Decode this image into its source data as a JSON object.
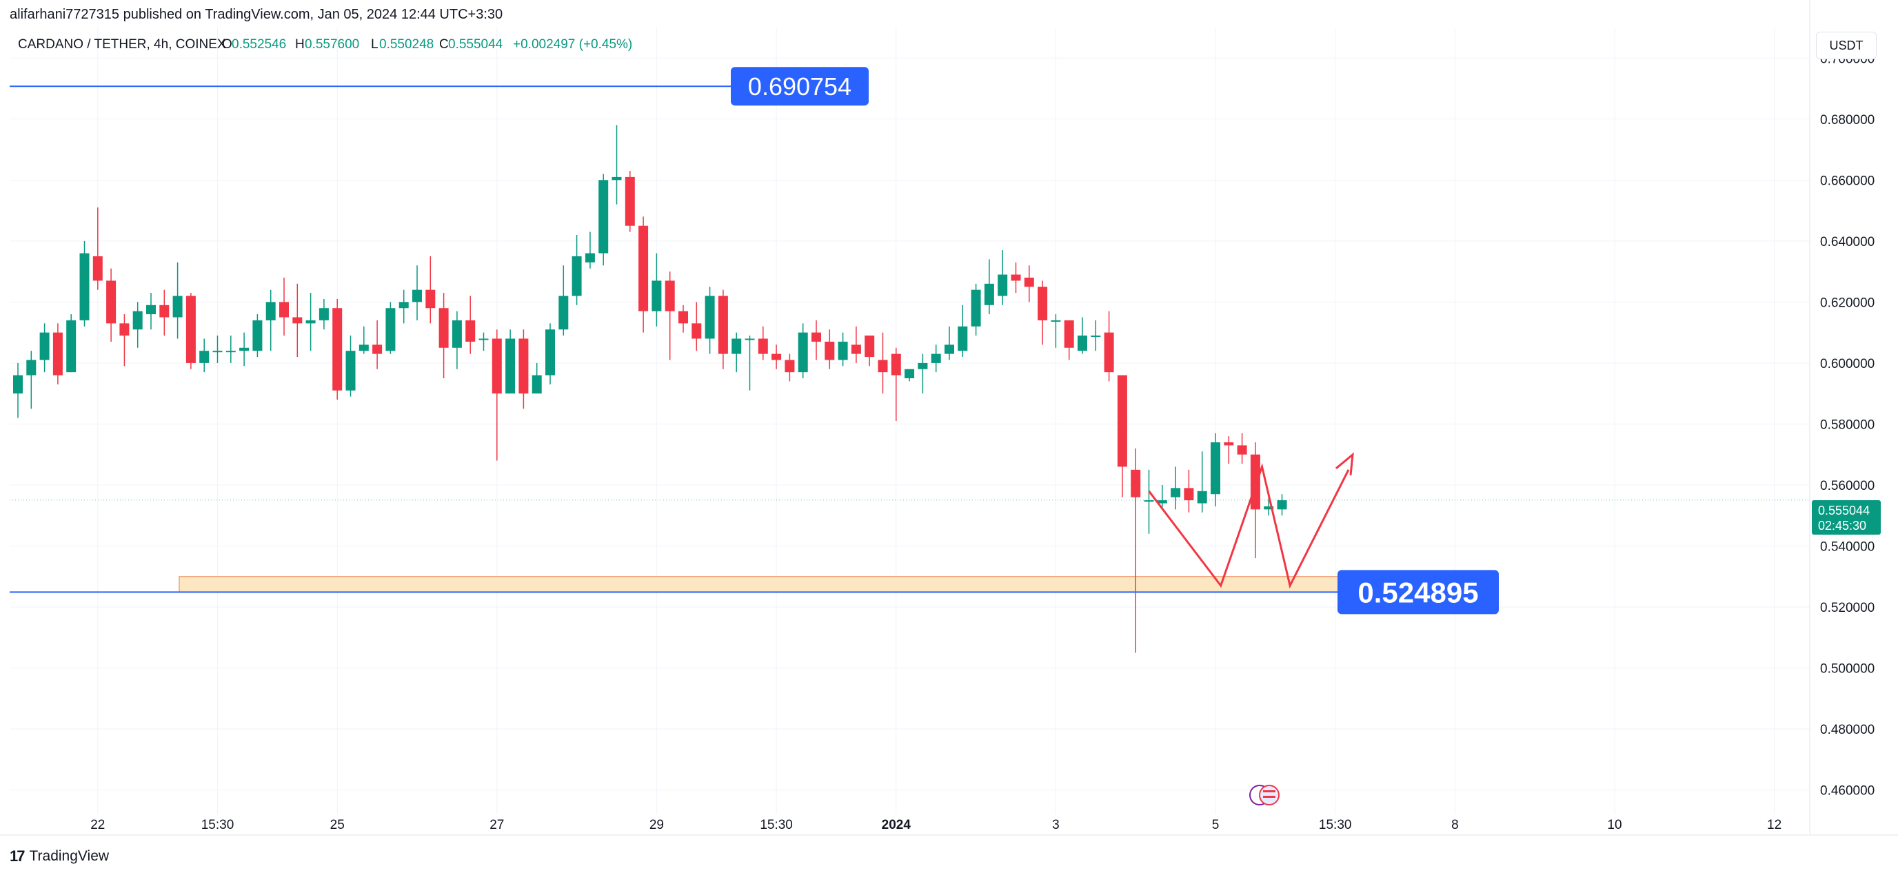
{
  "header": {
    "published": "alifarhani7727315 published on TradingView.com, Jan 05, 2024 12:44 UTC+3:30"
  },
  "legend": {
    "symbol": "CARDANO / TETHER, 4h, COINEX",
    "o_label": "O",
    "o_value": "0.552546",
    "h_label": "H",
    "h_value": "0.557600",
    "l_label": "L",
    "l_value": "0.550248",
    "c_label": "C",
    "c_value": "0.555044",
    "change": "+0.002497 (+0.45%)"
  },
  "currency_button": "USDT",
  "price_tag": {
    "price": "0.555044",
    "countdown": "02:45:30"
  },
  "levels": {
    "top_label": "0.690754",
    "bottom_label": "0.524895"
  },
  "footer": {
    "brand": "TradingView",
    "logo_mark": "17"
  },
  "colors": {
    "up": "#089981",
    "down": "#f23645",
    "level_line": "#2962ff",
    "label_bg": "#2962ff",
    "zone_fill": "#fde7c3",
    "zone_border": "#f1a37a",
    "annotation": "#f23645"
  },
  "chart_data": {
    "type": "candlestick",
    "symbol": "CARDANO / TETHER",
    "interval": "4h",
    "exchange": "COINEX",
    "ylim": [
      0.452,
      0.71
    ],
    "y_ticks": [
      0.46,
      0.48,
      0.5,
      0.52,
      0.54,
      0.56,
      0.58,
      0.6,
      0.62,
      0.64,
      0.66,
      0.68,
      0.7
    ],
    "y_tick_labels": [
      "0.460000",
      "0.480000",
      "0.500000",
      "0.520000",
      "0.540000",
      "0.560000",
      "0.580000",
      "0.600000",
      "0.620000",
      "0.640000",
      "0.660000",
      "0.680000",
      "0.700000"
    ],
    "x_ticks": [
      {
        "label": "22",
        "bar": 6
      },
      {
        "label": "15:30",
        "bar": 15
      },
      {
        "label": "25",
        "bar": 24
      },
      {
        "label": "27",
        "bar": 36
      },
      {
        "label": "29",
        "bar": 48
      },
      {
        "label": "15:30",
        "bar": 57
      },
      {
        "label": "2024",
        "bar": 66
      },
      {
        "label": "3",
        "bar": 78
      },
      {
        "label": "5",
        "bar": 90
      },
      {
        "label": "15:30",
        "bar": 99
      },
      {
        "label": "8",
        "bar": 108
      },
      {
        "label": "10",
        "bar": 120
      },
      {
        "label": "12",
        "bar": 132
      }
    ],
    "candles": [
      [
        0.59,
        0.596,
        0.6,
        0.582
      ],
      [
        0.596,
        0.601,
        0.604,
        0.585
      ],
      [
        0.601,
        0.61,
        0.613,
        0.597
      ],
      [
        0.61,
        0.596,
        0.613,
        0.593
      ],
      [
        0.597,
        0.614,
        0.616,
        0.597
      ],
      [
        0.614,
        0.636,
        0.64,
        0.612
      ],
      [
        0.635,
        0.627,
        0.651,
        0.624
      ],
      [
        0.627,
        0.613,
        0.631,
        0.607
      ],
      [
        0.613,
        0.609,
        0.616,
        0.599
      ],
      [
        0.611,
        0.617,
        0.62,
        0.605
      ],
      [
        0.616,
        0.619,
        0.623,
        0.611
      ],
      [
        0.619,
        0.615,
        0.624,
        0.609
      ],
      [
        0.615,
        0.622,
        0.633,
        0.608
      ],
      [
        0.622,
        0.6,
        0.623,
        0.598
      ],
      [
        0.6,
        0.604,
        0.608,
        0.597
      ],
      [
        0.604,
        0.604,
        0.609,
        0.6
      ],
      [
        0.604,
        0.604,
        0.609,
        0.6
      ],
      [
        0.604,
        0.605,
        0.61,
        0.599
      ],
      [
        0.604,
        0.614,
        0.616,
        0.602
      ],
      [
        0.614,
        0.62,
        0.624,
        0.604
      ],
      [
        0.62,
        0.615,
        0.628,
        0.609
      ],
      [
        0.615,
        0.613,
        0.626,
        0.602
      ],
      [
        0.613,
        0.614,
        0.623,
        0.604
      ],
      [
        0.614,
        0.618,
        0.621,
        0.611
      ],
      [
        0.618,
        0.591,
        0.621,
        0.588
      ],
      [
        0.591,
        0.604,
        0.609,
        0.589
      ],
      [
        0.604,
        0.606,
        0.612,
        0.603
      ],
      [
        0.606,
        0.603,
        0.614,
        0.598
      ],
      [
        0.604,
        0.618,
        0.62,
        0.603
      ],
      [
        0.618,
        0.62,
        0.624,
        0.613
      ],
      [
        0.62,
        0.624,
        0.632,
        0.614
      ],
      [
        0.624,
        0.618,
        0.635,
        0.613
      ],
      [
        0.618,
        0.605,
        0.623,
        0.595
      ],
      [
        0.605,
        0.614,
        0.617,
        0.598
      ],
      [
        0.614,
        0.607,
        0.622,
        0.603
      ],
      [
        0.608,
        0.608,
        0.61,
        0.604
      ],
      [
        0.608,
        0.59,
        0.611,
        0.568
      ],
      [
        0.59,
        0.608,
        0.611,
        0.591
      ],
      [
        0.608,
        0.59,
        0.611,
        0.585
      ],
      [
        0.59,
        0.596,
        0.6,
        0.59
      ],
      [
        0.596,
        0.611,
        0.613,
        0.593
      ],
      [
        0.611,
        0.622,
        0.632,
        0.609
      ],
      [
        0.622,
        0.635,
        0.642,
        0.619
      ],
      [
        0.633,
        0.636,
        0.643,
        0.631
      ],
      [
        0.636,
        0.66,
        0.662,
        0.632
      ],
      [
        0.66,
        0.661,
        0.678,
        0.652
      ],
      [
        0.661,
        0.645,
        0.663,
        0.643
      ],
      [
        0.645,
        0.617,
        0.648,
        0.61
      ],
      [
        0.617,
        0.627,
        0.636,
        0.612
      ],
      [
        0.627,
        0.617,
        0.63,
        0.601
      ],
      [
        0.617,
        0.613,
        0.619,
        0.61
      ],
      [
        0.613,
        0.608,
        0.62,
        0.604
      ],
      [
        0.608,
        0.622,
        0.625,
        0.603
      ],
      [
        0.622,
        0.603,
        0.624,
        0.598
      ],
      [
        0.603,
        0.608,
        0.61,
        0.597
      ],
      [
        0.608,
        0.608,
        0.609,
        0.591
      ],
      [
        0.608,
        0.603,
        0.612,
        0.601
      ],
      [
        0.603,
        0.601,
        0.606,
        0.598
      ],
      [
        0.601,
        0.597,
        0.603,
        0.594
      ],
      [
        0.597,
        0.61,
        0.613,
        0.595
      ],
      [
        0.61,
        0.607,
        0.614,
        0.601
      ],
      [
        0.607,
        0.601,
        0.611,
        0.598
      ],
      [
        0.601,
        0.607,
        0.61,
        0.599
      ],
      [
        0.606,
        0.603,
        0.612,
        0.6
      ],
      [
        0.609,
        0.602,
        0.609,
        0.599
      ],
      [
        0.601,
        0.597,
        0.61,
        0.59
      ],
      [
        0.603,
        0.596,
        0.605,
        0.581
      ],
      [
        0.595,
        0.598,
        0.598,
        0.594
      ],
      [
        0.598,
        0.6,
        0.603,
        0.59
      ],
      [
        0.6,
        0.603,
        0.606,
        0.597
      ],
      [
        0.603,
        0.606,
        0.612,
        0.601
      ],
      [
        0.604,
        0.612,
        0.619,
        0.602
      ],
      [
        0.612,
        0.624,
        0.626,
        0.609
      ],
      [
        0.619,
        0.626,
        0.634,
        0.616
      ],
      [
        0.622,
        0.629,
        0.637,
        0.619
      ],
      [
        0.629,
        0.627,
        0.633,
        0.623
      ],
      [
        0.628,
        0.625,
        0.632,
        0.62
      ],
      [
        0.625,
        0.614,
        0.627,
        0.606
      ],
      [
        0.614,
        0.614,
        0.616,
        0.605
      ],
      [
        0.614,
        0.605,
        0.614,
        0.601
      ],
      [
        0.604,
        0.609,
        0.615,
        0.603
      ],
      [
        0.609,
        0.609,
        0.614,
        0.604
      ],
      [
        0.61,
        0.597,
        0.617,
        0.594
      ],
      [
        0.596,
        0.566,
        0.596,
        0.556
      ],
      [
        0.565,
        0.556,
        0.572,
        0.505
      ],
      [
        0.555,
        0.555,
        0.565,
        0.544
      ],
      [
        0.554,
        0.555,
        0.56,
        0.552
      ],
      [
        0.556,
        0.559,
        0.566,
        0.552
      ],
      [
        0.559,
        0.555,
        0.565,
        0.551
      ],
      [
        0.554,
        0.558,
        0.571,
        0.551
      ],
      [
        0.557,
        0.574,
        0.577,
        0.553
      ],
      [
        0.574,
        0.573,
        0.576,
        0.567
      ],
      [
        0.573,
        0.57,
        0.577,
        0.567
      ],
      [
        0.57,
        0.552,
        0.574,
        0.536
      ],
      [
        0.552,
        0.553,
        0.557,
        0.55
      ],
      [
        0.552,
        0.555,
        0.557,
        0.55
      ]
    ],
    "horizontal_levels": [
      0.690754,
      0.524895
    ],
    "support_zone": [
      0.524895,
      0.53
    ],
    "last_price": 0.555044
  }
}
